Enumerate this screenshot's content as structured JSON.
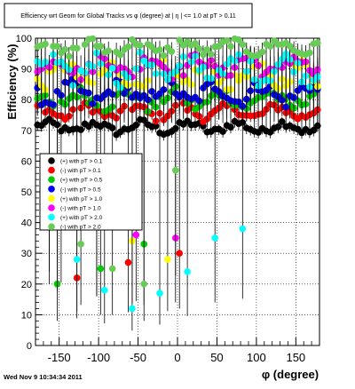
{
  "chart_data": {
    "type": "scatter",
    "title": "Efficiency wrt Geom for Global Tracks vs φ (degree) at | η | <= 1.0 at pT > 0.11",
    "xlabel": "φ (degree)",
    "ylabel": "Efficiency (%)",
    "xlim": [
      -180,
      180
    ],
    "ylim": [
      0,
      100
    ],
    "x_ticks": [
      -150,
      -100,
      -50,
      0,
      50,
      100,
      150
    ],
    "y_ticks": [
      0,
      10,
      20,
      30,
      40,
      50,
      60,
      70,
      80,
      90,
      100
    ],
    "grid": true,
    "legend_position": "middle-left",
    "timestamp": "Wed Nov  9 10:34:34 2011",
    "series": [
      {
        "name": "(+) with pT > 0.1",
        "color": "#000000",
        "baseline": 71.0,
        "spread": 2.5,
        "low_every": 0,
        "low_values": [],
        "upper_err": 1.5,
        "lower_err": 2
      },
      {
        "name": "(-) with pT > 0.1",
        "color": "#ff0000",
        "baseline": 76.0,
        "spread": 3.0,
        "low_every": 13,
        "low_values": [
          22,
          27,
          30
        ],
        "upper_err": 2,
        "lower_err": 2
      },
      {
        "name": "(+) with pT > 0.5",
        "color": "#00cc00",
        "baseline": 80.0,
        "spread": 4.0,
        "low_every": 11,
        "low_values": [
          20,
          25,
          33
        ],
        "upper_err": 3,
        "lower_err": 3
      },
      {
        "name": "(-) with pT > 0.5",
        "color": "#0000ff",
        "baseline": 82.0,
        "spread": 4.5,
        "low_every": 0,
        "low_values": [],
        "upper_err": 3,
        "lower_err": 3
      },
      {
        "name": "(+) with pT > 1.0",
        "color": "#ffff00",
        "baseline": 88.0,
        "spread": 5.0,
        "low_every": 9,
        "low_values": [
          51,
          40,
          34,
          28
        ],
        "upper_err": 4,
        "lower_err": 12
      },
      {
        "name": "(-) with pT > 1.0",
        "color": "#ff00ff",
        "baseline": 91.0,
        "spread": 4.5,
        "low_every": 10,
        "low_values": [
          44,
          40,
          36,
          35
        ],
        "upper_err": 4,
        "lower_err": 14
      },
      {
        "name": "(+) with pT > 2.0",
        "color": "#00ffff",
        "baseline": 90.0,
        "spread": 5.5,
        "low_every": 7,
        "low_values": [
          60,
          28,
          18,
          12,
          17,
          24,
          35,
          38
        ],
        "upper_err": 5,
        "lower_err": 16
      },
      {
        "name": "(-) with pT > 2.0",
        "color": "#66cc55",
        "baseline": 97.0,
        "spread": 3.0,
        "low_every": 8,
        "low_values": [
          50,
          33,
          25,
          20,
          57
        ],
        "upper_err": 3,
        "lower_err": 18
      }
    ]
  }
}
